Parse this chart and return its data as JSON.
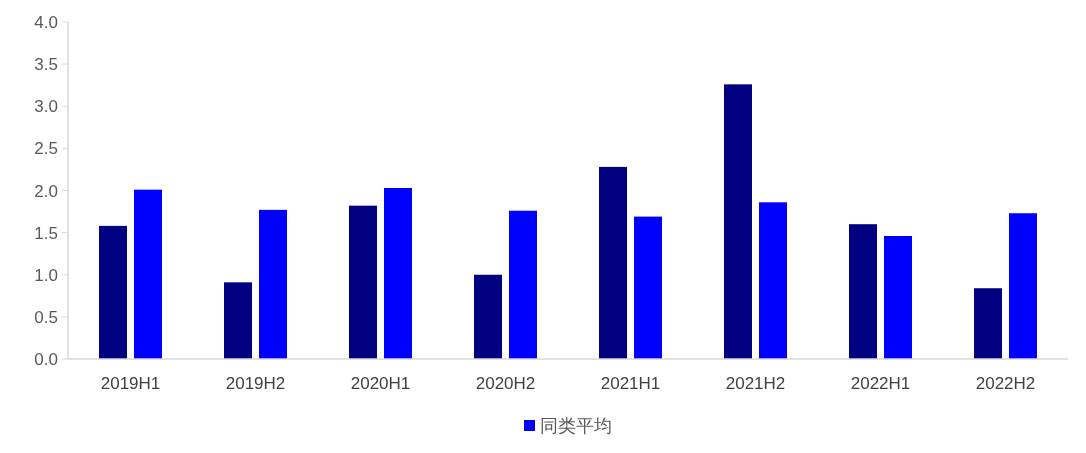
{
  "chart_data": {
    "type": "bar",
    "categories": [
      "2019H1",
      "2019H2",
      "2020H1",
      "2020H2",
      "2021H1",
      "2021H2",
      "2022H1",
      "2022H2"
    ],
    "series": [
      {
        "color": "#000080",
        "values": [
          1.58,
          0.91,
          1.82,
          1.0,
          2.28,
          3.26,
          1.6,
          0.84
        ]
      },
      {
        "name": "同类平均",
        "color": "#0000ff",
        "values": [
          2.01,
          1.77,
          2.03,
          1.76,
          1.69,
          1.86,
          1.46,
          1.73
        ]
      }
    ],
    "ylim": [
      0,
      4
    ],
    "yticks": [
      {
        "value": 0,
        "label": "0.0"
      },
      0.5,
      {
        "value": 1,
        "label": "1.0"
      },
      1.5,
      {
        "value": 2,
        "label": "2.0"
      },
      2.5,
      {
        "value": 3,
        "label": "3.0"
      },
      3.5,
      {
        "value": 4,
        "label": "4.0"
      }
    ],
    "legend": "bottom",
    "grid": false
  }
}
